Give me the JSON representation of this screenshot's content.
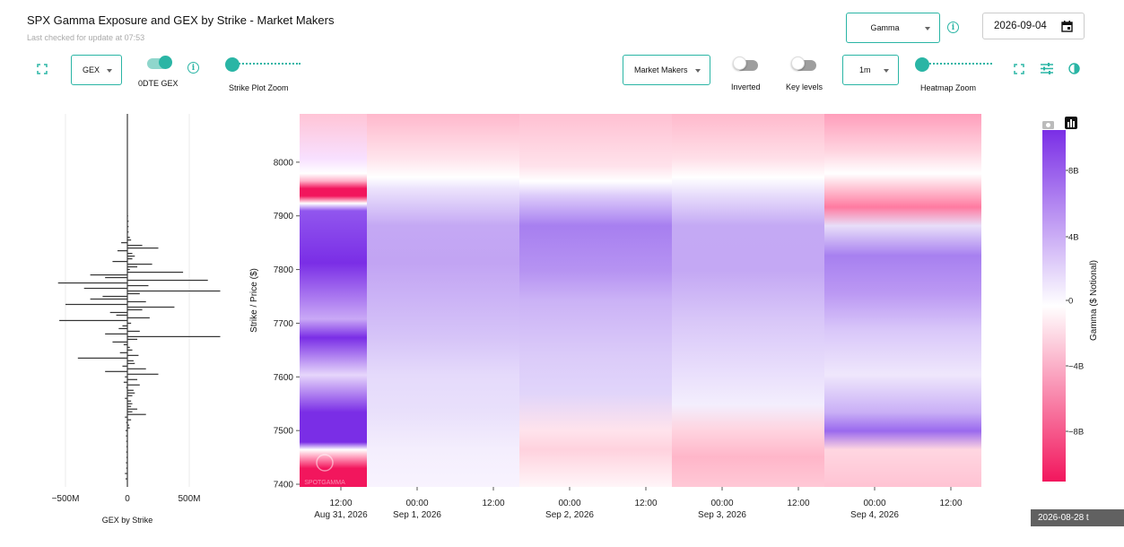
{
  "header": {
    "title": "SPX Gamma Exposure and GEX by Strike - Market Makers",
    "subtitle": "Last checked for update at 07:53",
    "metric_select": "Gamma",
    "date_value": "2026-09-04"
  },
  "toolbar": {
    "gex_select": "GEX",
    "odte_label": "0DTE GEX",
    "strike_zoom_label": "Strike Plot Zoom",
    "participant_select": "Market Makers",
    "inverted_label": "Inverted",
    "key_levels_label": "Key levels",
    "interval_select": "1m",
    "heatmap_zoom_label": "Heatmap Zoom",
    "odte_on": true,
    "inverted_on": false,
    "key_levels_on": false,
    "accent_color": "#2ab5a5"
  },
  "icons": {
    "expand": "expand-icon",
    "info": "info-icon",
    "calendar": "calendar-icon",
    "settings": "sliders-icon",
    "contrast": "contrast-icon",
    "camera": "camera-icon",
    "bar_chart": "bar-chart-icon"
  },
  "tooltip": "2026-08-28 t",
  "chart_data": [
    {
      "type": "bar",
      "orientation": "horizontal",
      "xlabel": "GEX by Strike",
      "x_ticks": [
        "−500M",
        "0",
        "500M"
      ],
      "xlim": [
        -800,
        800
      ],
      "ylim": [
        7395,
        8090
      ],
      "strikes": [
        7410,
        7420,
        7430,
        7440,
        7450,
        7460,
        7470,
        7480,
        7490,
        7500,
        7505,
        7510,
        7515,
        7520,
        7525,
        7530,
        7535,
        7540,
        7545,
        7550,
        7555,
        7560,
        7565,
        7570,
        7575,
        7580,
        7585,
        7590,
        7595,
        7600,
        7605,
        7610,
        7615,
        7620,
        7625,
        7630,
        7635,
        7640,
        7645,
        7650,
        7655,
        7660,
        7665,
        7670,
        7675,
        7680,
        7685,
        7690,
        7695,
        7700,
        7705,
        7710,
        7715,
        7720,
        7725,
        7730,
        7735,
        7740,
        7745,
        7750,
        7755,
        7760,
        7765,
        7770,
        7775,
        7780,
        7785,
        7790,
        7795,
        7800,
        7805,
        7810,
        7815,
        7820,
        7825,
        7830,
        7835,
        7840,
        7845,
        7850,
        7855,
        7860,
        7870,
        7880,
        7890,
        7900
      ],
      "values": [
        -15,
        -20,
        -10,
        -12,
        -8,
        -10,
        -8,
        -10,
        -12,
        -15,
        20,
        15,
        -10,
        30,
        -20,
        150,
        40,
        80,
        30,
        40,
        30,
        -20,
        40,
        60,
        50,
        -10,
        100,
        -30,
        80,
        -20,
        250,
        -180,
        150,
        -40,
        60,
        50,
        -400,
        90,
        -60,
        40,
        20,
        -30,
        -120,
        80,
        750,
        -180,
        100,
        -70,
        -40,
        30,
        -550,
        180,
        -90,
        -140,
        120,
        380,
        -500,
        150,
        -300,
        -200,
        100,
        750,
        -350,
        170,
        -560,
        650,
        -180,
        -300,
        450,
        20,
        80,
        200,
        -120,
        40,
        60,
        40,
        -80,
        250,
        120,
        -50,
        30,
        20,
        10,
        10,
        10,
        5
      ],
      "unit": "M"
    },
    {
      "type": "heatmap",
      "ylabel": "Strike / Price ($)",
      "y_ticks": [
        7400,
        7500,
        7600,
        7700,
        7800,
        7900,
        8000
      ],
      "ylim": [
        7395,
        8090
      ],
      "x_ticks": [
        {
          "time": "12:00",
          "date": "Aug 31, 2026"
        },
        {
          "time": "00:00",
          "date": "Sep 1, 2026"
        },
        {
          "time": "12:00",
          "date": ""
        },
        {
          "time": "00:00",
          "date": "Sep 2, 2026"
        },
        {
          "time": "12:00",
          "date": ""
        },
        {
          "time": "00:00",
          "date": "Sep 3, 2026"
        },
        {
          "time": "12:00",
          "date": ""
        },
        {
          "time": "00:00",
          "date": "Sep 4, 2026"
        },
        {
          "time": "12:00",
          "date": ""
        }
      ],
      "sessions": [
        "Aug 31, 2026",
        "Sep 1, 2026",
        "Sep 2, 2026",
        "Sep 3, 2026",
        "Sep 4, 2026"
      ],
      "colorbar": {
        "label": "Gamma ($ Notional)",
        "ticks": [
          "8B",
          "4B",
          "0",
          "−4B",
          "−8B"
        ],
        "range": [
          -10,
          10
        ],
        "positive_color": "#7a2ee6",
        "negative_color": "#f2165d"
      },
      "watermark": "SPOTGAMMA"
    }
  ]
}
